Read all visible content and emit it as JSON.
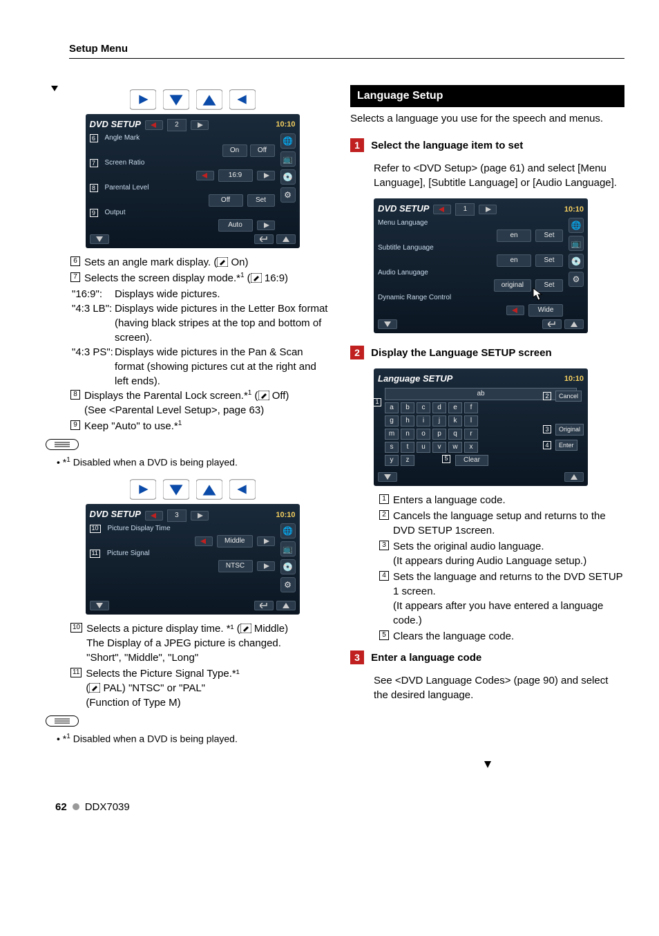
{
  "header": {
    "title": "Setup Menu"
  },
  "clock": "10:10",
  "left": {
    "screen1": {
      "title": "DVD SETUP",
      "page": "2",
      "rows": [
        {
          "num": "6",
          "label": "Angle Mark",
          "left_btn": true,
          "val": "On",
          "val2": "Off"
        },
        {
          "num": "7",
          "label": "Screen Ratio",
          "left_btn": true,
          "val": "16:9",
          "right_btn": true
        },
        {
          "num": "8",
          "label": "Parental Level",
          "left_btn": false,
          "val": "Off",
          "set": "Set"
        },
        {
          "num": "9",
          "label": "Output",
          "left_btn": false,
          "val": "Auto",
          "right_btn": true
        }
      ]
    },
    "desc1": [
      {
        "num": "6",
        "text": "Sets an angle mark display. (",
        "icon": true,
        "tail": " On)"
      },
      {
        "num": "7",
        "text": "Selects the screen display mode.*",
        "sup": "1",
        "tail2": " (",
        "icon": true,
        "tail": " 16:9)"
      }
    ],
    "modes": [
      {
        "k": "\"16:9\":",
        "v": "Displays wide pictures."
      },
      {
        "k": "\"4:3 LB\":",
        "v": "Displays wide pictures in the Letter Box format (having black stripes at the top and bottom of screen)."
      },
      {
        "k": "\"4:3 PS\":",
        "v": "Displays wide pictures in the Pan & Scan format (showing pictures cut at the right and left ends)."
      }
    ],
    "desc1b": [
      {
        "num": "8",
        "text": "Displays the Parental Lock screen.*",
        "sup": "1",
        "tail2": " (",
        "icon": true,
        "tail": " Off)",
        "extra": "(See <Parental Level Setup>, page 63)"
      },
      {
        "num": "9",
        "text": "Keep \"Auto\" to use.*",
        "sup": "1"
      }
    ],
    "note1": "Disabled when a DVD is being played.",
    "screen2": {
      "title": "DVD SETUP",
      "page": "3",
      "rows": [
        {
          "num": "10",
          "label": "Picture Display Time",
          "val": "Middle",
          "left_btn": true,
          "right_btn": true
        },
        {
          "num": "11",
          "label": "Picture Signal",
          "val": "NTSC",
          "left_btn": false,
          "right_btn": true
        }
      ]
    },
    "desc2": [
      {
        "num": "10",
        "lines": [
          "Selects a picture display time. *¹ (",
          " Middle)",
          "The Display of a JPEG picture is changed.",
          "\"Short\", \"Middle\", \"Long\""
        ],
        "icon_after_first": true
      },
      {
        "num": "11",
        "lines": [
          "Selects the Picture Signal Type.*¹",
          "(",
          " PAL) \"NTSC\" or \"PAL\"",
          "(Function of Type M)"
        ],
        "icon_in_line2": true
      }
    ],
    "note2": "Disabled when a DVD is being played."
  },
  "right": {
    "section": "Language Setup",
    "intro": "Selects a language you use for the speech and menus.",
    "step1": {
      "num": "1",
      "title": "Select the language item to set",
      "body": "Refer to <DVD Setup> (page 61) and select [Menu Language], [Subtitle Language] or [Audio Language]."
    },
    "screen1": {
      "title": "DVD SETUP",
      "page": "1",
      "rows": [
        {
          "label": "Menu Language",
          "val": "en",
          "set": "Set"
        },
        {
          "label": "Subtitle Language",
          "val": "en",
          "set": "Set"
        },
        {
          "label": "Audio Lanugage",
          "val": "original",
          "set": "Set",
          "cursor": true
        },
        {
          "label": "Dynamic Range Control",
          "val": "Wide",
          "left_btn": true
        }
      ]
    },
    "step2": {
      "num": "2",
      "title": "Display the Language SETUP screen"
    },
    "screen2": {
      "title": "Language SETUP",
      "ab": "ab",
      "rows": [
        [
          "a",
          "b",
          "c",
          "d",
          "e",
          "f"
        ],
        [
          "g",
          "h",
          "i",
          "j",
          "k",
          "l"
        ],
        [
          "m",
          "n",
          "o",
          "p",
          "q",
          "r"
        ],
        [
          "s",
          "t",
          "u",
          "v",
          "w",
          "x"
        ],
        [
          "y",
          "z"
        ]
      ],
      "clear": "Clear",
      "cancel": "Cancel",
      "original": "Original",
      "enter": "Enter",
      "callouts": {
        "1": "1",
        "2": "2",
        "3": "3",
        "4": "4",
        "5": "5"
      }
    },
    "desc": [
      {
        "num": "1",
        "text": "Enters a language code."
      },
      {
        "num": "2",
        "text": "Cancels the language setup and returns to the DVD SETUP 1screen."
      },
      {
        "num": "3",
        "text": "Sets the original audio language.",
        "extra": "(It appears during Audio Language setup.)"
      },
      {
        "num": "4",
        "text": "Sets the language and returns to the DVD SETUP 1 screen.",
        "extra": "(It appears after you have entered a language code.)"
      },
      {
        "num": "5",
        "text": "Clears the language code."
      }
    ],
    "step3": {
      "num": "3",
      "title": "Enter a language code",
      "body": "See <DVD Language Codes> (page 90) and select the desired language."
    }
  },
  "footer": {
    "page": "62",
    "model": "DDX7039"
  }
}
